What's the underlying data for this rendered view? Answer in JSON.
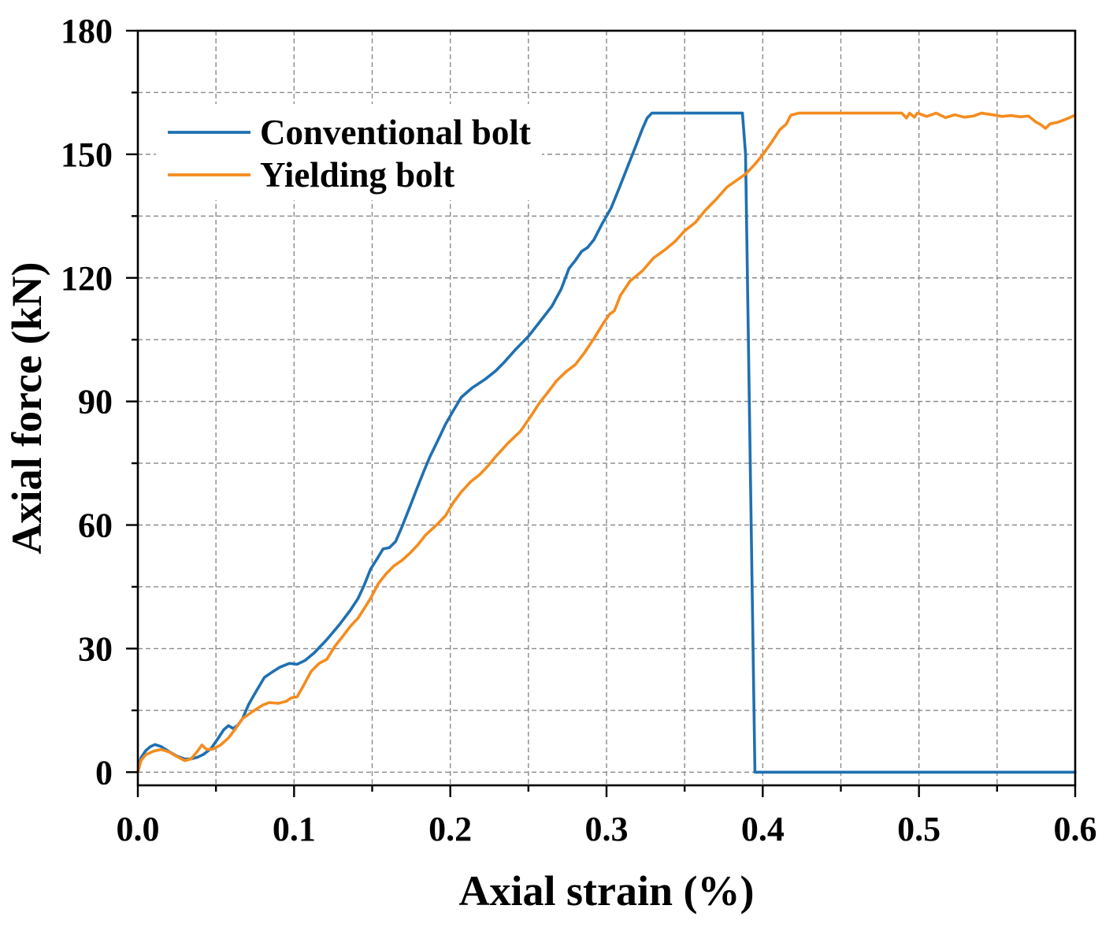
{
  "chart_data": {
    "type": "line",
    "title": "",
    "xlabel": "Axial strain (%)",
    "ylabel": "Axial force (kN)",
    "xlim": [
      0,
      0.6
    ],
    "ylim": [
      -3.2,
      180
    ],
    "x_ticks": [
      0,
      0.1,
      0.2,
      0.3,
      0.4,
      0.5,
      0.6
    ],
    "x_tick_labels": [
      "0.0",
      "0.1",
      "0.2",
      "0.3",
      "0.4",
      "0.5",
      "0.6"
    ],
    "x_minor_step": 0.05,
    "y_ticks": [
      0,
      30,
      60,
      90,
      120,
      150,
      180
    ],
    "y_tick_labels": [
      "0",
      "30",
      "60",
      "90",
      "120",
      "150",
      "180"
    ],
    "y_minor_step": 15,
    "grid": true,
    "legend_position": "top-left",
    "series": [
      {
        "name": "Conventional bolt",
        "color": "#1f70b1",
        "x": [
          0,
          0.002,
          0.005,
          0.008,
          0.011,
          0.015,
          0.02,
          0.025,
          0.03,
          0.034,
          0.038,
          0.042,
          0.047,
          0.051,
          0.055,
          0.058,
          0.061,
          0.064,
          0.067,
          0.071,
          0.076,
          0.081,
          0.086,
          0.091,
          0.097,
          0.102,
          0.107,
          0.113,
          0.121,
          0.129,
          0.136,
          0.141,
          0.145,
          0.149,
          0.153,
          0.157,
          0.161,
          0.165,
          0.169,
          0.174,
          0.179,
          0.183,
          0.187,
          0.192,
          0.197,
          0.202,
          0.207,
          0.214,
          0.222,
          0.229,
          0.234,
          0.242,
          0.25,
          0.257,
          0.265,
          0.271,
          0.276,
          0.28,
          0.284,
          0.288,
          0.292,
          0.297,
          0.303,
          0.308,
          0.313,
          0.318,
          0.323,
          0.326,
          0.329,
          0.387,
          0.389,
          0.395,
          0.6
        ],
        "y": [
          0,
          3.5,
          5.2,
          6.2,
          6.7,
          6.2,
          5.0,
          3.9,
          3.2,
          3.2,
          3.6,
          4.3,
          5.8,
          8.0,
          10.3,
          11.3,
          10.6,
          11.4,
          13.0,
          16.5,
          19.8,
          23.0,
          24.3,
          25.5,
          26.4,
          26.2,
          27.1,
          29.0,
          32.2,
          35.8,
          39.3,
          42.2,
          45.5,
          49.3,
          51.7,
          54.2,
          54.5,
          56.0,
          59.5,
          64.3,
          69.2,
          73.0,
          76.6,
          80.5,
          84.5,
          87.8,
          91.0,
          93.3,
          95.3,
          97.4,
          99.3,
          102.7,
          105.8,
          109.2,
          113.1,
          117.3,
          122.3,
          124.2,
          126.4,
          127.4,
          129.3,
          133.0,
          137.0,
          141.7,
          146.5,
          151.3,
          156.2,
          158.8,
          160.0,
          160.0,
          150.0,
          0,
          0
        ]
      },
      {
        "name": "Yielding bolt",
        "color": "#f48c1e",
        "x": [
          0,
          0.002,
          0.005,
          0.01,
          0.015,
          0.02,
          0.025,
          0.03,
          0.034,
          0.038,
          0.041,
          0.044,
          0.048,
          0.053,
          0.058,
          0.063,
          0.067,
          0.073,
          0.08,
          0.084,
          0.09,
          0.095,
          0.098,
          0.102,
          0.106,
          0.111,
          0.116,
          0.121,
          0.126,
          0.131,
          0.136,
          0.141,
          0.145,
          0.149,
          0.154,
          0.159,
          0.164,
          0.169,
          0.174,
          0.179,
          0.184,
          0.192,
          0.197,
          0.202,
          0.207,
          0.213,
          0.219,
          0.224,
          0.229,
          0.237,
          0.245,
          0.251,
          0.257,
          0.263,
          0.268,
          0.274,
          0.28,
          0.286,
          0.292,
          0.298,
          0.302,
          0.305,
          0.309,
          0.315,
          0.323,
          0.33,
          0.338,
          0.344,
          0.35,
          0.357,
          0.363,
          0.37,
          0.377,
          0.383,
          0.389,
          0.395,
          0.4,
          0.406,
          0.411,
          0.415,
          0.418,
          0.423,
          0.489,
          0.492,
          0.494,
          0.497,
          0.499,
          0.505,
          0.511,
          0.517,
          0.523,
          0.529,
          0.535,
          0.54,
          0.547,
          0.553,
          0.559,
          0.565,
          0.57,
          0.575,
          0.578,
          0.581,
          0.584,
          0.589,
          0.594,
          0.6
        ],
        "y": [
          0,
          2.8,
          4.2,
          5.1,
          5.5,
          4.9,
          3.8,
          2.8,
          3.2,
          5.0,
          6.6,
          5.5,
          5.6,
          6.6,
          8.3,
          10.8,
          13.0,
          14.6,
          16.3,
          16.9,
          16.7,
          17.2,
          18.0,
          18.3,
          21.0,
          24.5,
          26.4,
          27.4,
          30.5,
          32.9,
          35.4,
          37.4,
          39.8,
          42.2,
          45.8,
          48.2,
          50.1,
          51.4,
          53.1,
          55.1,
          57.5,
          60.3,
          62.3,
          65.5,
          68.0,
          70.5,
          72.3,
          74.3,
          76.6,
          79.9,
          82.8,
          86.1,
          89.6,
          92.5,
          95.0,
          97.2,
          98.9,
          101.9,
          105.3,
          109.0,
          111.2,
          112.0,
          115.8,
          119.2,
          121.7,
          124.8,
          127.0,
          128.9,
          131.4,
          133.5,
          136.3,
          139.0,
          142.0,
          143.6,
          145.2,
          147.6,
          149.9,
          153.1,
          156.0,
          157.3,
          159.5,
          160.0,
          160.0,
          158.8,
          160.0,
          159.0,
          160.0,
          159.2,
          160.0,
          158.9,
          159.6,
          159.0,
          159.3,
          160.0,
          159.6,
          159.2,
          159.4,
          159.1,
          159.3,
          157.8,
          157.2,
          156.3,
          157.4,
          157.8,
          158.5,
          159.5
        ]
      }
    ]
  }
}
